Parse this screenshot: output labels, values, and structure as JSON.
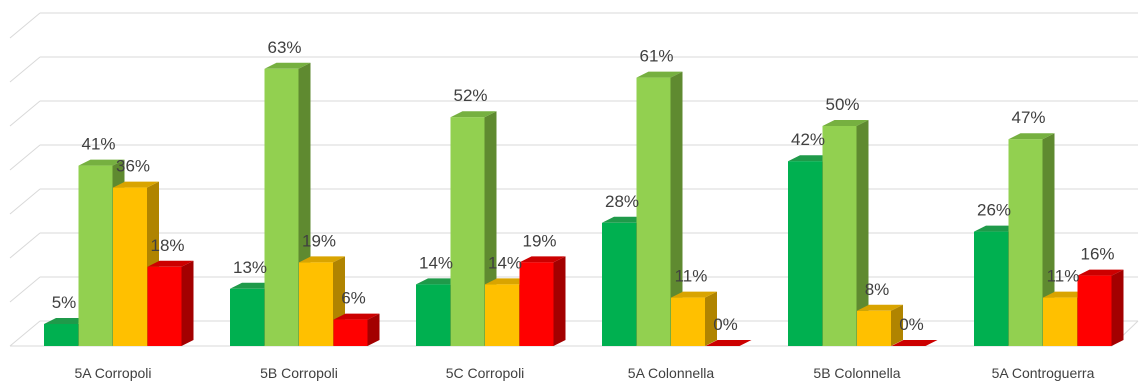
{
  "chart_data": {
    "type": "bar",
    "style": "3d-clustered-column",
    "categories": [
      "5A Corropoli",
      "5B Corropoli",
      "5C Corropoli",
      "5A Colonnella",
      "5B  Colonnella",
      "5A Controguerra"
    ],
    "series": [
      {
        "color": "#00b050",
        "side": "#00803a",
        "top": "#1f9a4a",
        "values": [
          5,
          13,
          14,
          28,
          42,
          26
        ]
      },
      {
        "color": "#92d050",
        "side": "#5f8a30",
        "top": "#76b040",
        "values": [
          41,
          63,
          52,
          61,
          50,
          47
        ]
      },
      {
        "color": "#ffc000",
        "side": "#b08400",
        "top": "#d9a400",
        "values": [
          36,
          19,
          14,
          11,
          8,
          11
        ]
      },
      {
        "color": "#ff0000",
        "side": "#a30000",
        "top": "#cc0000",
        "values": [
          18,
          6,
          19,
          0,
          0,
          16
        ]
      }
    ],
    "value_suffix": "%",
    "ylim": [
      0,
      70
    ],
    "grid": true,
    "legend": "none"
  }
}
